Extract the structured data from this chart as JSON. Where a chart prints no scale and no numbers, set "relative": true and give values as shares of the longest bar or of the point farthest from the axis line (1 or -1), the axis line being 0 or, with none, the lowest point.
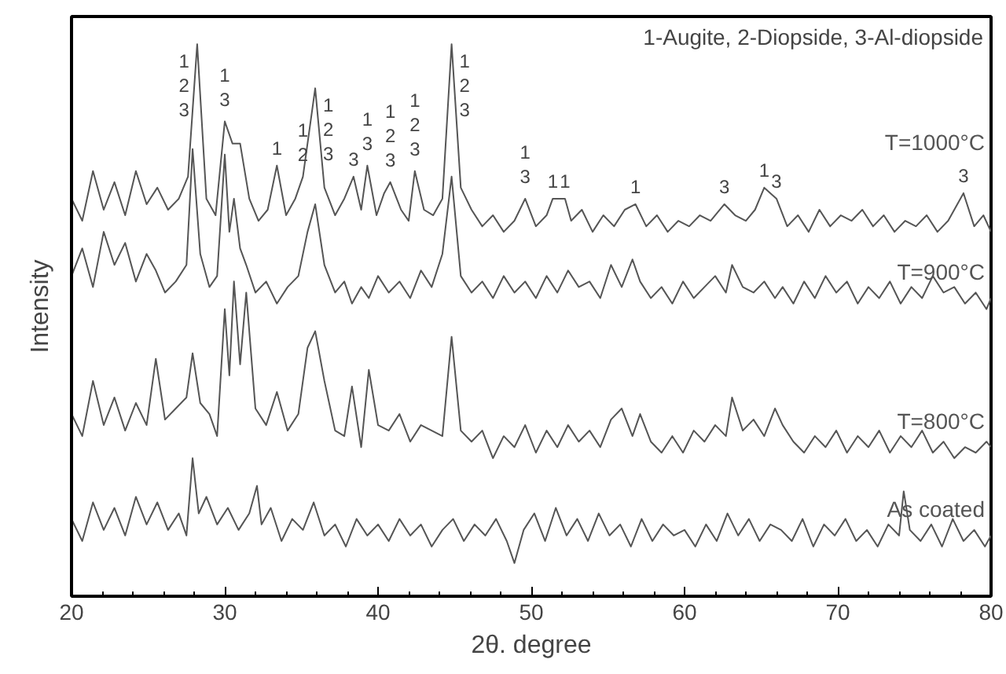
{
  "chart_data": {
    "type": "line",
    "relative": true,
    "xlabel": "2θ. degree",
    "ylabel": "Intensity",
    "xlim": [
      20,
      80
    ],
    "xticks": [
      20,
      30,
      40,
      50,
      60,
      70,
      80
    ],
    "legend": false,
    "grid": false,
    "series": [
      {
        "name": "T=1000°C",
        "color": "#555555",
        "x": [
          20,
          20.7,
          21.4,
          22.1,
          22.8,
          23.5,
          24.2,
          24.9,
          25.6,
          26.3,
          27,
          27.6,
          28.2,
          28.8,
          29.4,
          30,
          30.5,
          31,
          31.6,
          32.2,
          32.8,
          33.4,
          34,
          34.6,
          35.1,
          35.9,
          36.5,
          37.2,
          37.8,
          38.4,
          38.9,
          39.3,
          39.9,
          40.4,
          40.8,
          41.5,
          42,
          42.4,
          43,
          43.6,
          44.2,
          44.8,
          45.4,
          46.1,
          46.8,
          47.5,
          48.2,
          48.9,
          49.6,
          50.3,
          51,
          51.4,
          52.2,
          52.6,
          53.3,
          54,
          54.7,
          55.4,
          56.1,
          56.8,
          57.5,
          58.2,
          58.9,
          59.6,
          60.3,
          61,
          61.7,
          62.6,
          63.3,
          64,
          64.6,
          65.2,
          66,
          66.7,
          67.4,
          68.1,
          68.8,
          69.5,
          70.2,
          70.9,
          71.6,
          72.3,
          73,
          73.7,
          74.4,
          75.1,
          75.8,
          76.5,
          77.2,
          78.2,
          78.9,
          79.5,
          80
        ],
        "values": [
          0.72,
          0.68,
          0.77,
          0.7,
          0.75,
          0.69,
          0.77,
          0.71,
          0.74,
          0.7,
          0.72,
          0.76,
          1.0,
          0.72,
          0.69,
          0.86,
          0.82,
          0.82,
          0.72,
          0.68,
          0.7,
          0.78,
          0.69,
          0.72,
          0.76,
          0.92,
          0.74,
          0.69,
          0.72,
          0.76,
          0.7,
          0.78,
          0.69,
          0.73,
          0.75,
          0.7,
          0.68,
          0.77,
          0.7,
          0.69,
          0.72,
          1.0,
          0.74,
          0.7,
          0.67,
          0.69,
          0.66,
          0.68,
          0.72,
          0.67,
          0.69,
          0.72,
          0.72,
          0.68,
          0.7,
          0.66,
          0.69,
          0.67,
          0.7,
          0.71,
          0.67,
          0.69,
          0.66,
          0.68,
          0.67,
          0.69,
          0.68,
          0.71,
          0.69,
          0.68,
          0.7,
          0.74,
          0.72,
          0.67,
          0.69,
          0.66,
          0.7,
          0.67,
          0.69,
          0.68,
          0.7,
          0.67,
          0.69,
          0.66,
          0.68,
          0.67,
          0.69,
          0.66,
          0.68,
          0.73,
          0.67,
          0.69,
          0.66
        ]
      },
      {
        "name": "T=900°C",
        "color": "#555555",
        "x": [
          20,
          20.7,
          21.4,
          22.1,
          22.8,
          23.5,
          24.2,
          24.9,
          25.5,
          26.1,
          26.8,
          27.5,
          27.9,
          28.4,
          29,
          29.5,
          30,
          30.3,
          30.6,
          31,
          31.4,
          32,
          32.7,
          33.4,
          34.1,
          34.8,
          35.4,
          35.9,
          36.5,
          37.2,
          37.8,
          38.3,
          38.9,
          39.4,
          40,
          40.7,
          41.4,
          42.1,
          42.8,
          43.5,
          44.2,
          44.8,
          45.4,
          46.1,
          46.8,
          47.5,
          48.2,
          48.9,
          49.6,
          50.3,
          51,
          51.7,
          52.4,
          53.1,
          53.8,
          54.5,
          55.2,
          55.9,
          56.6,
          57.1,
          57.8,
          58.5,
          59.2,
          59.9,
          60.6,
          61.3,
          62,
          62.7,
          63.1,
          63.8,
          64.5,
          65.2,
          65.9,
          66.4,
          67.1,
          67.8,
          68.5,
          69.2,
          69.9,
          70.6,
          71.3,
          72,
          72.7,
          73.4,
          74.1,
          74.8,
          75.5,
          76.2,
          76.9,
          77.6,
          78.3,
          79,
          79.7,
          80
        ],
        "values": [
          0.58,
          0.63,
          0.56,
          0.66,
          0.6,
          0.64,
          0.57,
          0.62,
          0.59,
          0.55,
          0.57,
          0.6,
          0.81,
          0.62,
          0.56,
          0.58,
          0.8,
          0.66,
          0.72,
          0.63,
          0.6,
          0.55,
          0.57,
          0.53,
          0.56,
          0.58,
          0.66,
          0.71,
          0.6,
          0.55,
          0.57,
          0.53,
          0.56,
          0.54,
          0.58,
          0.55,
          0.57,
          0.54,
          0.59,
          0.56,
          0.62,
          0.76,
          0.58,
          0.55,
          0.57,
          0.54,
          0.58,
          0.55,
          0.57,
          0.54,
          0.58,
          0.55,
          0.59,
          0.56,
          0.57,
          0.54,
          0.6,
          0.56,
          0.61,
          0.57,
          0.54,
          0.56,
          0.53,
          0.57,
          0.54,
          0.56,
          0.58,
          0.55,
          0.6,
          0.56,
          0.55,
          0.57,
          0.54,
          0.56,
          0.53,
          0.57,
          0.54,
          0.58,
          0.55,
          0.57,
          0.53,
          0.56,
          0.54,
          0.57,
          0.53,
          0.56,
          0.54,
          0.58,
          0.55,
          0.56,
          0.53,
          0.55,
          0.52,
          0.54
        ]
      },
      {
        "name": "T=800°C",
        "color": "#555555",
        "x": [
          20,
          20.7,
          21.4,
          22.1,
          22.8,
          23.5,
          24.2,
          24.9,
          25.5,
          26.1,
          26.8,
          27.5,
          27.9,
          28.4,
          29,
          29.5,
          30,
          30.3,
          30.6,
          31,
          31.4,
          32,
          32.7,
          33.4,
          34.1,
          34.8,
          35.4,
          35.9,
          36.5,
          37.2,
          37.8,
          38.3,
          38.9,
          39.4,
          40,
          40.7,
          41.4,
          42.1,
          42.8,
          43.5,
          44.2,
          44.8,
          45.4,
          46.1,
          46.8,
          47.5,
          48.2,
          48.9,
          49.6,
          50.3,
          51,
          51.7,
          52.4,
          53.1,
          53.8,
          54.5,
          55.2,
          55.9,
          56.6,
          57.1,
          57.8,
          58.5,
          59.2,
          59.9,
          60.6,
          61.3,
          62,
          62.7,
          63.1,
          63.8,
          64.5,
          65.2,
          65.9,
          66.4,
          67.1,
          67.8,
          68.5,
          69.2,
          69.9,
          70.6,
          71.3,
          72,
          72.7,
          73.4,
          74.1,
          74.8,
          75.5,
          76.2,
          76.9,
          77.6,
          78.3,
          79,
          79.7,
          80
        ],
        "values": [
          0.33,
          0.29,
          0.39,
          0.31,
          0.36,
          0.3,
          0.35,
          0.31,
          0.43,
          0.32,
          0.34,
          0.36,
          0.44,
          0.35,
          0.33,
          0.29,
          0.52,
          0.4,
          0.57,
          0.42,
          0.55,
          0.34,
          0.31,
          0.37,
          0.3,
          0.33,
          0.45,
          0.48,
          0.39,
          0.3,
          0.29,
          0.38,
          0.27,
          0.41,
          0.31,
          0.3,
          0.33,
          0.28,
          0.31,
          0.3,
          0.29,
          0.47,
          0.3,
          0.28,
          0.3,
          0.25,
          0.29,
          0.27,
          0.31,
          0.26,
          0.3,
          0.27,
          0.31,
          0.28,
          0.3,
          0.27,
          0.32,
          0.34,
          0.29,
          0.33,
          0.28,
          0.26,
          0.29,
          0.26,
          0.3,
          0.28,
          0.31,
          0.29,
          0.36,
          0.3,
          0.32,
          0.29,
          0.34,
          0.31,
          0.28,
          0.26,
          0.29,
          0.27,
          0.3,
          0.26,
          0.29,
          0.27,
          0.3,
          0.26,
          0.29,
          0.27,
          0.3,
          0.26,
          0.28,
          0.25,
          0.27,
          0.26,
          0.28,
          0.27
        ]
      },
      {
        "name": "As coated",
        "color": "#555555",
        "x": [
          20,
          20.7,
          21.4,
          22.1,
          22.8,
          23.5,
          24.2,
          24.9,
          25.6,
          26.3,
          27,
          27.5,
          27.9,
          28.3,
          28.8,
          29.5,
          30.2,
          30.9,
          31.6,
          32.1,
          32.4,
          33,
          33.7,
          34.4,
          35.1,
          35.8,
          36.5,
          37.2,
          37.9,
          38.6,
          39.3,
          40,
          40.7,
          41.4,
          42.1,
          42.8,
          43.5,
          44.2,
          44.9,
          45.6,
          46.3,
          47,
          47.7,
          48.4,
          48.9,
          49.5,
          50.2,
          50.9,
          51.6,
          52.3,
          53,
          53.7,
          54.4,
          55.1,
          55.8,
          56.5,
          57.2,
          57.9,
          58.6,
          59.3,
          60,
          60.7,
          61.4,
          62.1,
          62.8,
          63.5,
          64.2,
          64.9,
          65.6,
          66.3,
          67,
          67.7,
          68.4,
          69.1,
          69.8,
          70.5,
          71.2,
          71.9,
          72.6,
          73.3,
          74,
          74.3,
          74.7,
          75.4,
          76.1,
          76.8,
          77.5,
          78.2,
          78.9,
          79.6,
          80
        ],
        "values": [
          0.14,
          0.1,
          0.17,
          0.12,
          0.16,
          0.11,
          0.18,
          0.13,
          0.17,
          0.12,
          0.15,
          0.11,
          0.25,
          0.15,
          0.18,
          0.13,
          0.16,
          0.12,
          0.15,
          0.2,
          0.13,
          0.16,
          0.1,
          0.14,
          0.12,
          0.17,
          0.11,
          0.13,
          0.09,
          0.14,
          0.11,
          0.13,
          0.1,
          0.14,
          0.11,
          0.13,
          0.09,
          0.12,
          0.14,
          0.1,
          0.13,
          0.11,
          0.14,
          0.1,
          0.06,
          0.12,
          0.15,
          0.1,
          0.16,
          0.11,
          0.14,
          0.1,
          0.15,
          0.11,
          0.13,
          0.09,
          0.14,
          0.1,
          0.13,
          0.11,
          0.12,
          0.09,
          0.13,
          0.1,
          0.15,
          0.11,
          0.14,
          0.1,
          0.13,
          0.12,
          0.1,
          0.14,
          0.09,
          0.13,
          0.11,
          0.14,
          0.1,
          0.12,
          0.09,
          0.13,
          0.11,
          0.19,
          0.12,
          0.1,
          0.13,
          0.09,
          0.14,
          0.1,
          0.12,
          0.09,
          0.11
        ]
      }
    ],
    "annotations": [
      "1-Augite, 2-Diopside, 3-Al-diopside",
      {
        "text": "1\n2\n3",
        "x": 28.2,
        "y": 1.0
      },
      {
        "text": "1\n3",
        "x": 30,
        "y": 0.86
      },
      {
        "text": "1",
        "x": 33.4,
        "y": 0.78
      },
      {
        "text": "1\n2",
        "x": 35.1,
        "y": 0.76
      },
      {
        "text": "1\n2\n3",
        "x": 35.9,
        "y": 0.92
      },
      {
        "text": "3",
        "x": 38.4,
        "y": 0.76
      },
      {
        "text": "1\n3",
        "x": 39.3,
        "y": 0.78
      },
      {
        "text": "1\n2\n3",
        "x": 40.8,
        "y": 0.75
      },
      {
        "text": "1\n2\n3",
        "x": 42.4,
        "y": 0.77
      },
      {
        "text": "1\n2\n3",
        "x": 44.8,
        "y": 1.0
      },
      {
        "text": "1\n3",
        "x": 49.6,
        "y": 0.72
      },
      {
        "text": "1",
        "x": 51.4,
        "y": 0.72
      },
      {
        "text": "1",
        "x": 52.2,
        "y": 0.72
      },
      {
        "text": "1",
        "x": 56.8,
        "y": 0.71
      },
      {
        "text": "3",
        "x": 62.6,
        "y": 0.71
      },
      {
        "text": "1",
        "x": 65.2,
        "y": 0.74
      },
      {
        "text": "3",
        "x": 66,
        "y": 0.72
      },
      {
        "text": "3",
        "x": 78.2,
        "y": 0.73
      }
    ]
  }
}
